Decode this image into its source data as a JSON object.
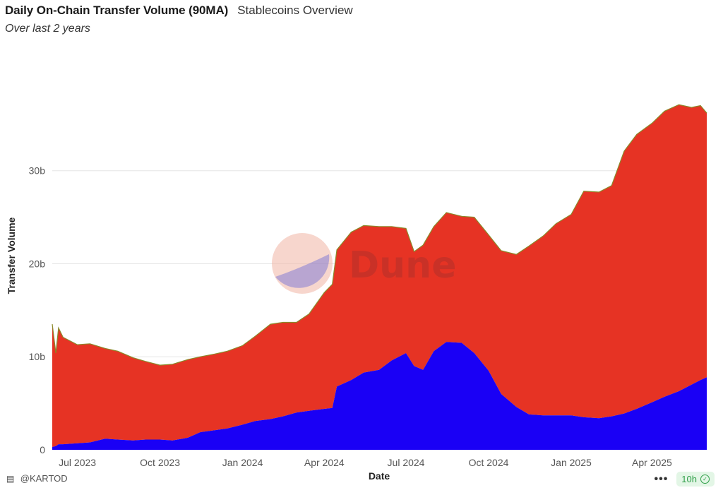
{
  "header": {
    "title": "Daily On-Chain Transfer Volume (90MA)",
    "dashboard": "Stablecoins Overview",
    "subtitle": "Over last 2 years"
  },
  "watermark": {
    "text": "Dune",
    "icon": "dune-logo-icon"
  },
  "footer": {
    "author": "@KARTOD",
    "author_icon": "paint-roller-icon",
    "more_icon": "more-icon",
    "freshness": "10h",
    "freshness_icon": "check-circle-icon"
  },
  "colors": {
    "top_series": "#e63324",
    "bottom_series": "#1a00f5",
    "edge": "#8a8a2a",
    "grid": "#e6e6e6"
  },
  "chart_data": {
    "type": "area",
    "stacked": true,
    "xlabel": "Date",
    "ylabel": "Transfer Volume",
    "x_ticks": [
      "Jul 2023",
      "Oct 2023",
      "Jan 2024",
      "Apr 2024",
      "Jul 2024",
      "Oct 2024",
      "Jan 2025",
      "Apr 2025"
    ],
    "y_ticks": [
      "0",
      "10b",
      "20b",
      "30b"
    ],
    "ylim": [
      0,
      38
    ],
    "xlim": [
      "2023-06-03",
      "2025-06-01"
    ],
    "grid": true,
    "legend": "none",
    "x": [
      "2023-06-03",
      "2023-06-07",
      "2023-06-10",
      "2023-06-15",
      "2023-07-01",
      "2023-07-15",
      "2023-08-01",
      "2023-08-15",
      "2023-09-01",
      "2023-09-15",
      "2023-10-01",
      "2023-10-15",
      "2023-11-01",
      "2023-11-15",
      "2023-12-01",
      "2023-12-15",
      "2024-01-01",
      "2024-01-15",
      "2024-02-01",
      "2024-02-15",
      "2024-03-01",
      "2024-03-15",
      "2024-04-01",
      "2024-04-10",
      "2024-04-15",
      "2024-05-01",
      "2024-05-15",
      "2024-06-01",
      "2024-06-15",
      "2024-07-01",
      "2024-07-10",
      "2024-07-20",
      "2024-08-01",
      "2024-08-15",
      "2024-09-01",
      "2024-09-15",
      "2024-10-01",
      "2024-10-15",
      "2024-11-01",
      "2024-11-15",
      "2024-12-01",
      "2024-12-15",
      "2025-01-01",
      "2025-01-15",
      "2025-02-01",
      "2025-02-15",
      "2025-03-01",
      "2025-03-15",
      "2025-04-01",
      "2025-04-15",
      "2025-05-01",
      "2025-05-15",
      "2025-05-25",
      "2025-06-01"
    ],
    "series": [
      {
        "values": [
          0.3,
          0.4,
          0.6,
          0.6,
          0.7,
          0.8,
          1.2,
          1.1,
          1.0,
          1.1,
          1.1,
          1.0,
          1.3,
          1.9,
          2.1,
          2.3,
          2.7,
          3.1,
          3.3,
          3.6,
          4.0,
          4.2,
          4.4,
          4.5,
          6.8,
          7.5,
          8.3,
          8.6,
          9.6,
          10.4,
          9.0,
          8.6,
          10.6,
          11.6,
          11.5,
          10.4,
          8.5,
          6.0,
          4.6,
          3.8,
          3.7,
          3.7,
          3.7,
          3.5,
          3.4,
          3.6,
          3.9,
          4.4,
          5.1,
          5.7,
          6.3,
          7.0,
          7.5,
          7.8
        ]
      },
      {
        "values": [
          13.2,
          10.0,
          12.5,
          11.5,
          10.6,
          10.6,
          9.7,
          9.5,
          8.9,
          8.4,
          8.0,
          8.2,
          8.4,
          8.1,
          8.2,
          8.3,
          8.5,
          9.1,
          10.2,
          10.1,
          9.7,
          10.4,
          12.5,
          13.3,
          14.7,
          15.9,
          15.8,
          15.4,
          14.4,
          13.4,
          12.3,
          13.4,
          13.4,
          13.9,
          13.6,
          14.6,
          14.6,
          15.4,
          16.4,
          18.1,
          19.3,
          20.6,
          21.6,
          24.3,
          24.3,
          24.8,
          28.2,
          29.5,
          30.0,
          30.7,
          30.8,
          29.8,
          29.5,
          28.4
        ]
      }
    ]
  }
}
